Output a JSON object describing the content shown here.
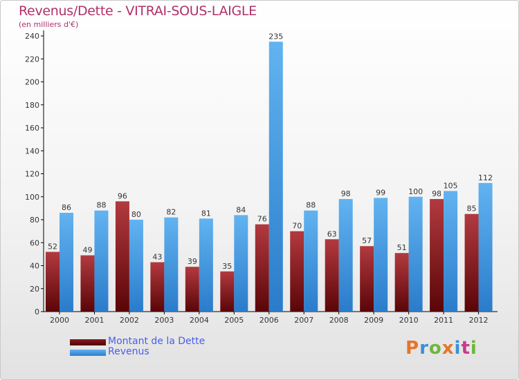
{
  "title": "Revenus/Dette - VITRAI-SOUS-LAIGLE",
  "subtitle": "(en milliers d'€)",
  "logo": "Proxiti",
  "colors": {
    "dette": "#6b0a0f",
    "dette_light": "#b23a3f",
    "revenus": "#2e86d6",
    "revenus_light": "#5fb0ee",
    "title": "#b0306a",
    "legend_text": "#4a5ee8"
  },
  "chart_data": {
    "type": "bar",
    "categories": [
      "2000",
      "2001",
      "2002",
      "2003",
      "2004",
      "2005",
      "2006",
      "2007",
      "2008",
      "2009",
      "2010",
      "2011",
      "2012"
    ],
    "series": [
      {
        "name": "Montant de la Dette",
        "values": [
          52,
          49,
          96,
          43,
          39,
          35,
          76,
          70,
          63,
          57,
          51,
          98,
          85
        ]
      },
      {
        "name": "Revenus",
        "values": [
          86,
          88,
          80,
          82,
          81,
          84,
          235,
          88,
          98,
          99,
          100,
          105,
          112
        ]
      }
    ],
    "ylim": [
      0,
      240
    ],
    "yticks": [
      0,
      20,
      40,
      60,
      80,
      100,
      120,
      140,
      160,
      180,
      200,
      220,
      240
    ],
    "grid": false,
    "legend": "bottom-left"
  }
}
